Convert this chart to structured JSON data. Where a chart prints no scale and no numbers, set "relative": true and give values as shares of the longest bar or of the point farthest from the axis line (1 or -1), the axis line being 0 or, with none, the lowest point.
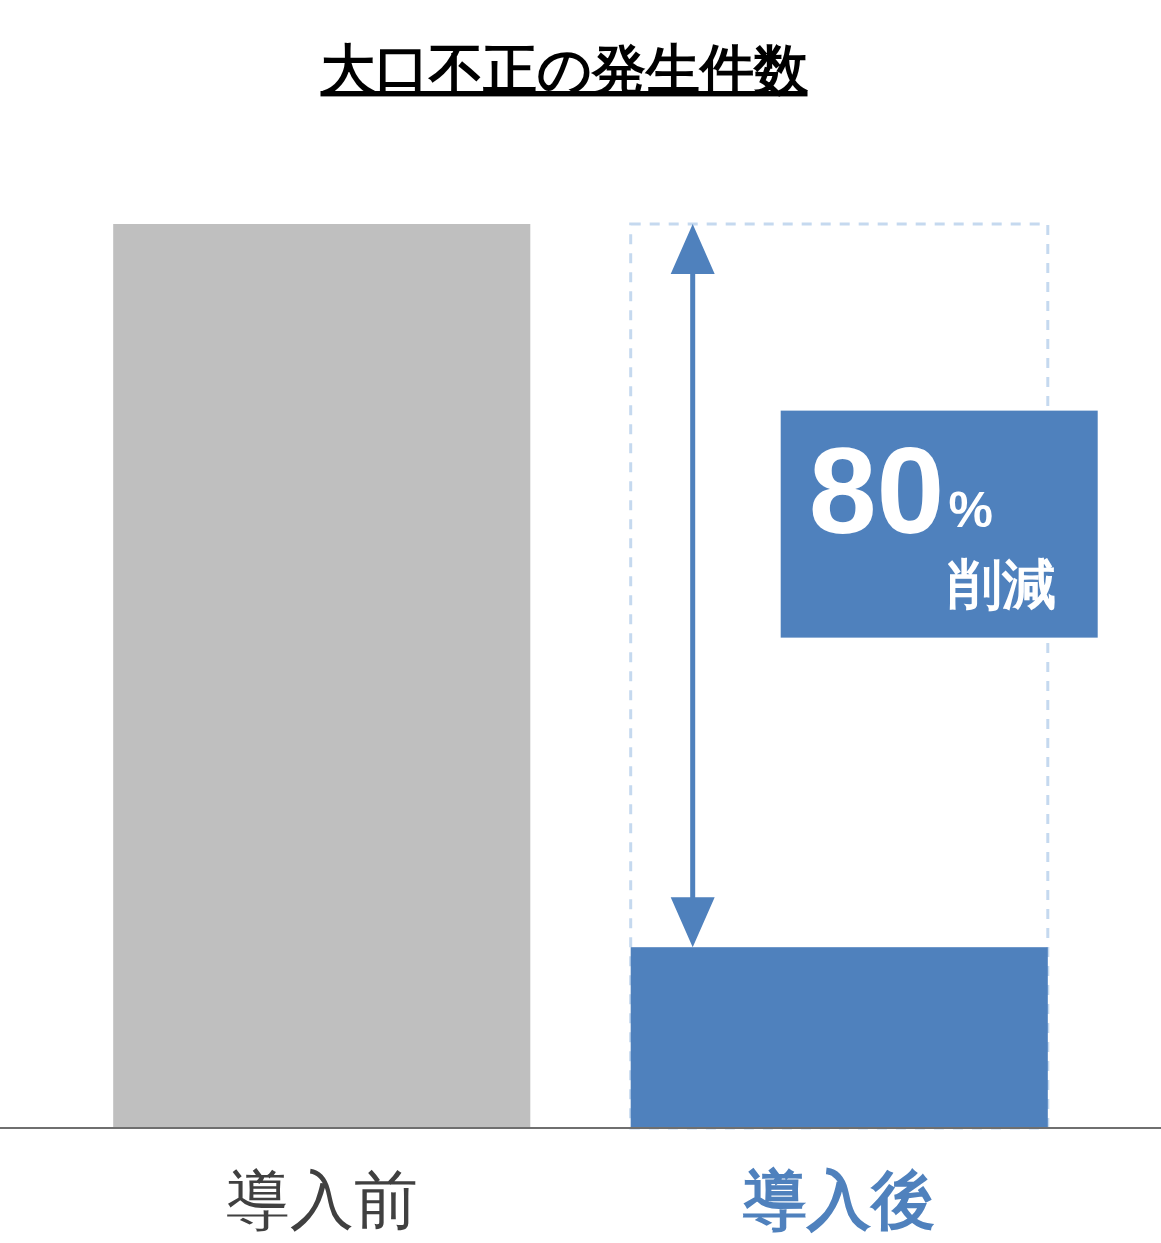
{
  "chart_data": {
    "type": "bar",
    "title": "大口不正の発生件数",
    "categories": [
      "導入前",
      "導入後"
    ],
    "series": [
      {
        "values": [
          1,
          0.2
        ],
        "colors": [
          "#bfbfbf",
          "#4f81bd"
        ]
      },
      {
        "values": [
          null,
          1
        ],
        "color": "#c5d9ef",
        "line_style": "dashed"
      }
    ],
    "relative": true,
    "annotations": [
      "80% 削減"
    ]
  }
}
